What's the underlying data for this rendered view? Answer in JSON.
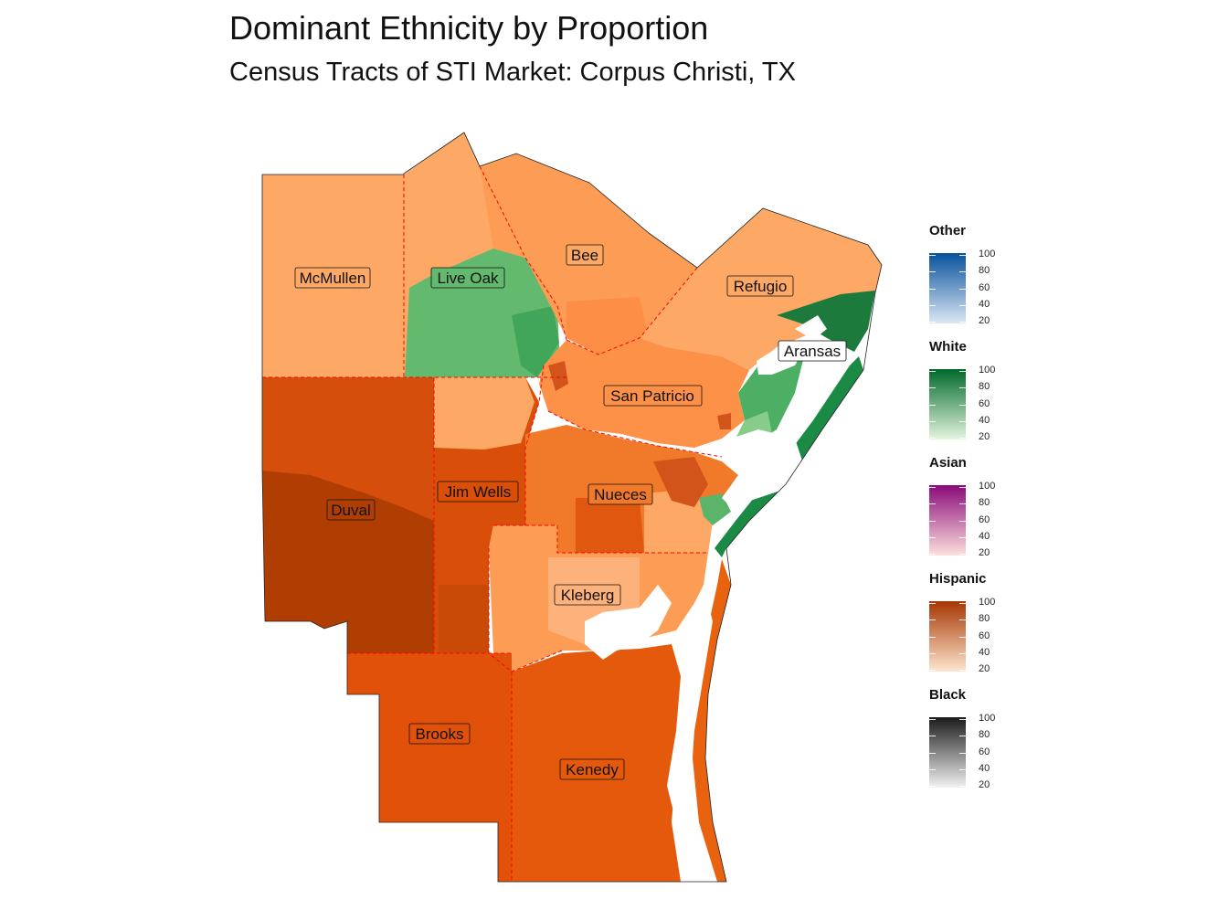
{
  "title": "Dominant Ethnicity by Proportion",
  "subtitle": "Census Tracts of STI Market: Corpus Christi, TX",
  "counties": [
    "McMullen",
    "Live Oak",
    "Bee",
    "Refugio",
    "Aransas",
    "San Patricio",
    "Duval",
    "Jim Wells",
    "Nueces",
    "Kleberg",
    "Brooks",
    "Kenedy"
  ],
  "legend": [
    {
      "name": "Other",
      "colors": [
        "#dbe8f5",
        "#08519c"
      ],
      "ticks": [
        "100",
        "80",
        "60",
        "40",
        "20"
      ]
    },
    {
      "name": "White",
      "colors": [
        "#e5f5e0",
        "#00692a"
      ],
      "ticks": [
        "100",
        "80",
        "60",
        "40",
        "20"
      ]
    },
    {
      "name": "Asian",
      "colors": [
        "#fde0dd",
        "#8a0a7a"
      ],
      "ticks": [
        "100",
        "80",
        "60",
        "40",
        "20"
      ]
    },
    {
      "name": "Hispanic",
      "colors": [
        "#fee6ce",
        "#a63603"
      ],
      "ticks": [
        "100",
        "80",
        "60",
        "40",
        "20"
      ]
    },
    {
      "name": "Black",
      "colors": [
        "#f2f2f2",
        "#1a1a1a"
      ],
      "ticks": [
        "100",
        "80",
        "60",
        "40",
        "20"
      ]
    }
  ],
  "colors": {
    "hispanic_light": "#fdae6b",
    "hispanic_mid": "#fd8d3c",
    "hispanic_dark": "#e6550d",
    "hispanic_darker": "#d94801",
    "hispanic_darkest": "#b03e02",
    "white_mid": "#66bb6a",
    "white_dark": "#1b7a3c",
    "county_border": "#ff0000"
  }
}
